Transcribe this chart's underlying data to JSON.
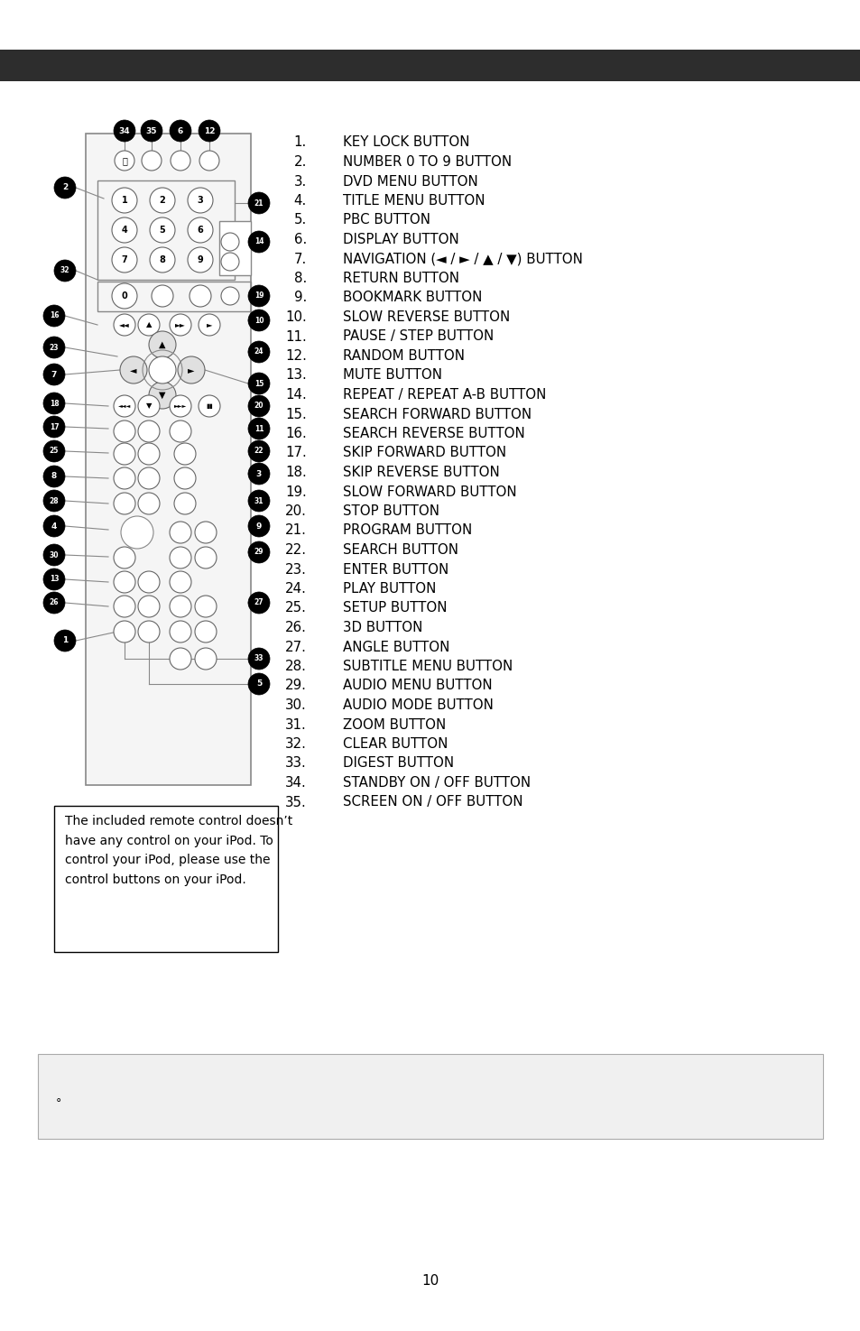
{
  "background_color": "#ffffff",
  "header_bar_color": "#2d2d2d",
  "items": [
    "KEY LOCK BUTTON",
    "NUMBER 0 TO 9 BUTTON",
    "DVD MENU BUTTON",
    "TITLE MENU BUTTON",
    "PBC BUTTON",
    "DISPLAY BUTTON",
    "NAVIGATION (◄ / ► / ▲ / ▼) BUTTON",
    "RETURN BUTTON",
    "BOOKMARK BUTTON",
    "SLOW REVERSE BUTTON",
    "PAUSE / STEP BUTTON",
    "RANDOM BUTTON",
    "MUTE BUTTON",
    "REPEAT / REPEAT A-B BUTTON",
    "SEARCH FORWARD BUTTON",
    "SEARCH REVERSE BUTTON",
    "SKIP FORWARD BUTTON",
    "SKIP REVERSE BUTTON",
    "SLOW FORWARD BUTTON",
    "STOP BUTTON",
    "PROGRAM BUTTON",
    "SEARCH BUTTON",
    "ENTER BUTTON",
    "PLAY BUTTON",
    "SETUP BUTTON",
    "3D BUTTON",
    "ANGLE BUTTON",
    "SUBTITLE MENU BUTTON",
    "AUDIO MENU BUTTON",
    "AUDIO MODE BUTTON",
    "ZOOM BUTTON",
    "CLEAR BUTTON",
    "DIGEST BUTTON",
    "STANDBY ON / OFF BUTTON",
    "SCREEN ON / OFF BUTTON"
  ],
  "note_text_lines": [
    "The included remote control doesn’t",
    "have any control on your iPod. To",
    "control your iPod, please use the",
    "control buttons on your iPod."
  ],
  "bottom_note_symbol": "°",
  "page_number": "10"
}
